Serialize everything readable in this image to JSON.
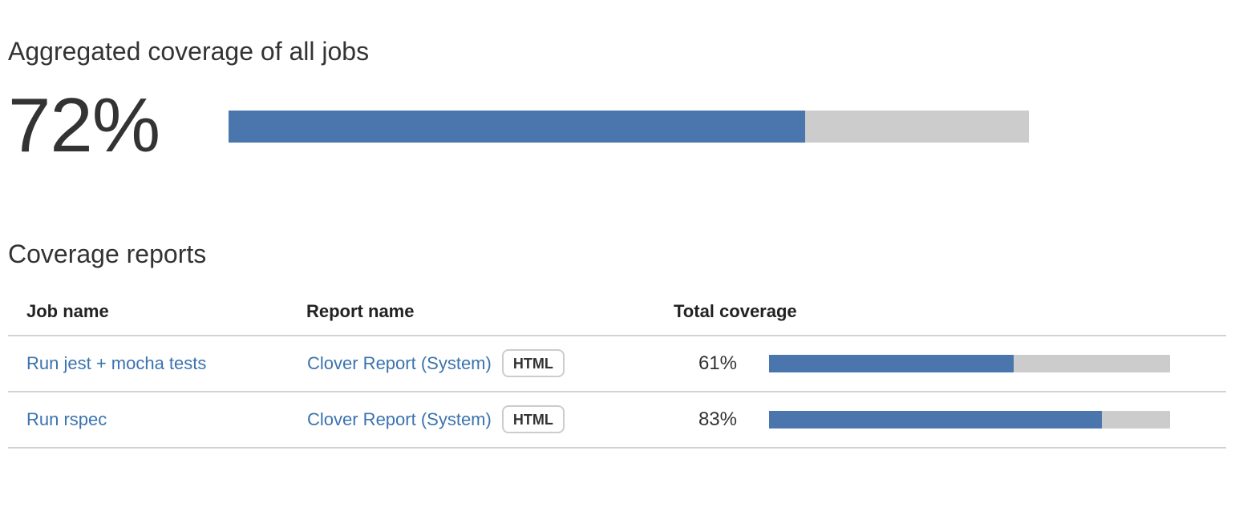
{
  "aggregated": {
    "title": "Aggregated coverage of all jobs",
    "percent_label": "72%",
    "percent_value": 72
  },
  "coverage_reports": {
    "title": "Coverage reports",
    "headers": {
      "job": "Job name",
      "report": "Report name",
      "coverage": "Total coverage"
    },
    "rows": [
      {
        "job": "Run jest + mocha tests",
        "report": "Clover Report (System)",
        "badge": "HTML",
        "coverage_label": "61%",
        "coverage_value": 61
      },
      {
        "job": "Run rspec",
        "report": "Clover Report (System)",
        "badge": "HTML",
        "coverage_label": "83%",
        "coverage_value": 83
      }
    ]
  },
  "colors": {
    "bar_fill": "#4a76ad",
    "bar_track": "#cccccc",
    "link": "#3b73af",
    "divider": "#d2d2d2"
  }
}
